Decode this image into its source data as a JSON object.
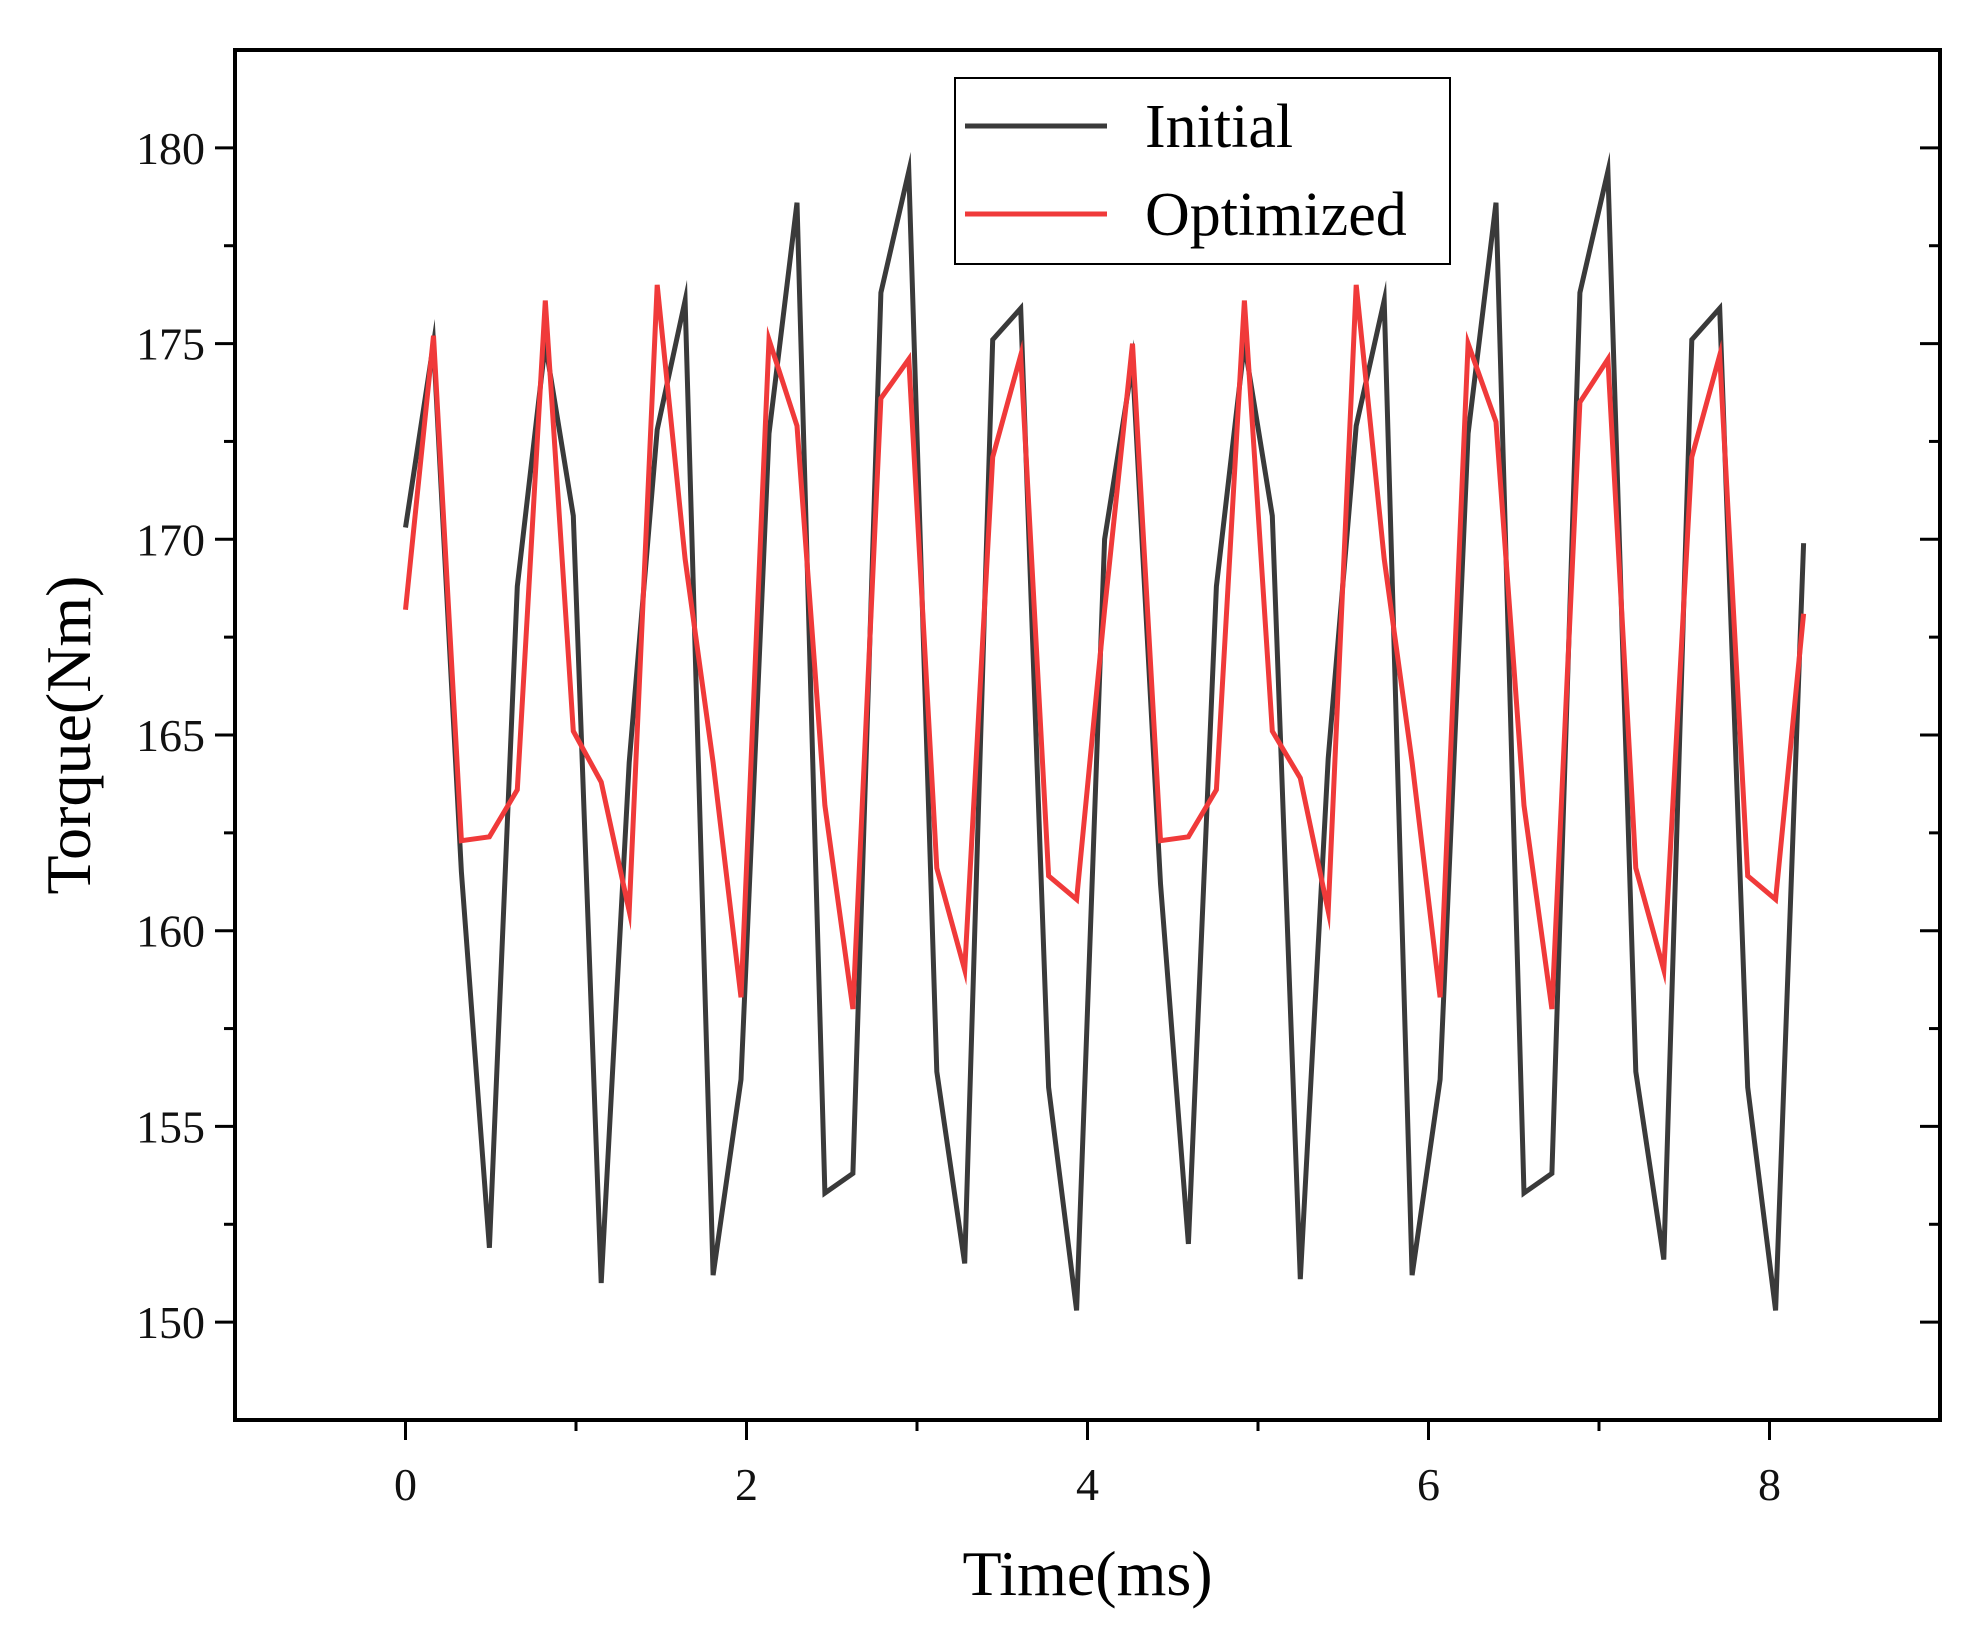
{
  "chart_data": {
    "type": "line",
    "title": "",
    "xlabel": "Time(ms)",
    "ylabel": "Torque(Nm)",
    "xlim": [
      -1,
      9
    ],
    "ylim": [
      147.5,
      182.5
    ],
    "x_ticks": [
      0,
      2,
      4,
      6,
      8
    ],
    "x_minor_ticks": [
      1,
      3,
      5,
      7
    ],
    "y_ticks": [
      150,
      155,
      160,
      165,
      170,
      175,
      180
    ],
    "y_minor_ticks": [
      152.5,
      157.5,
      162.5,
      167.5,
      172.5,
      177.5
    ],
    "legend_position": "top-center",
    "series": [
      {
        "name": "Initial",
        "color": "#3a3a3a",
        "x": [
          0.0,
          0.164,
          0.328,
          0.492,
          0.656,
          0.82,
          0.984,
          1.148,
          1.312,
          1.476,
          1.64,
          1.804,
          1.968,
          2.132,
          2.296,
          2.46,
          2.624,
          2.788,
          2.952,
          3.116,
          3.28,
          3.444,
          3.608,
          3.772,
          3.936,
          4.1,
          4.264,
          4.428,
          4.592,
          4.756,
          4.92,
          5.084,
          5.248,
          5.412,
          5.576,
          5.74,
          5.904,
          6.068,
          6.232,
          6.396,
          6.56,
          6.724,
          6.888,
          7.052,
          7.216,
          7.38,
          7.544,
          7.708,
          7.872,
          8.036,
          8.2
        ],
        "values": [
          170.3,
          175.0,
          161.5,
          151.9,
          168.8,
          175.0,
          170.6,
          151.0,
          164.3,
          172.8,
          176.1,
          151.2,
          156.2,
          172.7,
          178.6,
          153.3,
          153.8,
          176.3,
          179.4,
          156.4,
          151.5,
          175.1,
          175.9,
          156.0,
          150.3,
          170.0,
          174.5,
          161.2,
          152.0,
          168.8,
          175.0,
          170.6,
          151.1,
          164.4,
          172.9,
          176.1,
          151.2,
          156.2,
          172.7,
          178.6,
          153.3,
          153.8,
          176.3,
          179.4,
          156.4,
          151.6,
          175.1,
          175.9,
          156.0,
          150.3,
          169.9
        ]
      },
      {
        "name": "Optimized",
        "color": "#f03a3a",
        "x": [
          0.0,
          0.164,
          0.328,
          0.492,
          0.656,
          0.82,
          0.984,
          1.148,
          1.312,
          1.476,
          1.64,
          1.804,
          1.968,
          2.132,
          2.296,
          2.46,
          2.624,
          2.788,
          2.952,
          3.116,
          3.28,
          3.444,
          3.608,
          3.772,
          3.936,
          4.1,
          4.264,
          4.428,
          4.592,
          4.756,
          4.92,
          5.084,
          5.248,
          5.412,
          5.576,
          5.74,
          5.904,
          6.068,
          6.232,
          6.396,
          6.56,
          6.724,
          6.888,
          7.052,
          7.216,
          7.38,
          7.544,
          7.708,
          7.872,
          8.036,
          8.2
        ],
        "values": [
          168.2,
          175.2,
          162.3,
          162.4,
          163.6,
          176.1,
          165.1,
          163.8,
          160.5,
          176.5,
          169.5,
          164.3,
          158.3,
          175.1,
          172.9,
          163.2,
          158.0,
          173.6,
          174.6,
          161.6,
          159.0,
          172.1,
          174.7,
          161.4,
          160.8,
          168.2,
          175.0,
          162.3,
          162.4,
          163.6,
          176.1,
          165.1,
          163.9,
          160.5,
          176.5,
          169.5,
          164.3,
          158.3,
          175.0,
          173.0,
          163.2,
          158.0,
          173.5,
          174.6,
          161.6,
          159.0,
          172.1,
          174.7,
          161.4,
          160.8,
          168.1
        ]
      }
    ]
  }
}
